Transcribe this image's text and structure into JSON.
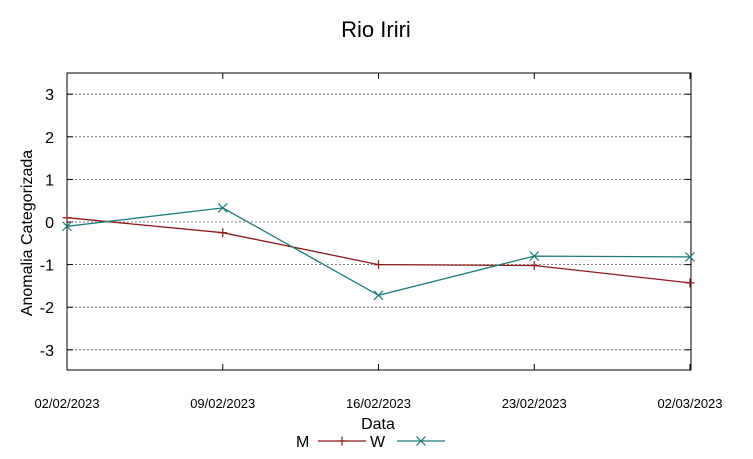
{
  "chart_data": {
    "type": "line",
    "title": "Rio Iriri",
    "xlabel": "Data",
    "ylabel": "Anomalia Categorizada",
    "categories": [
      "02/02/2023",
      "09/02/2023",
      "16/02/2023",
      "23/02/2023",
      "02/03/2023"
    ],
    "yticks": [
      "3",
      "2",
      "1",
      "0",
      "-1",
      "-2",
      "-3"
    ],
    "ylim": [
      -3.5,
      3.5
    ],
    "grid": "horizontal",
    "legend_position": "bottom",
    "series": [
      {
        "name": "M",
        "color": "#8b1a1a",
        "marker": "plus",
        "values": [
          0.1,
          -0.25,
          -1.0,
          -1.02,
          -1.43
        ]
      },
      {
        "name": "W",
        "color": "#1f7a7a",
        "marker": "x",
        "values": [
          -0.1,
          0.33,
          -1.72,
          -0.8,
          -0.82
        ]
      }
    ]
  }
}
